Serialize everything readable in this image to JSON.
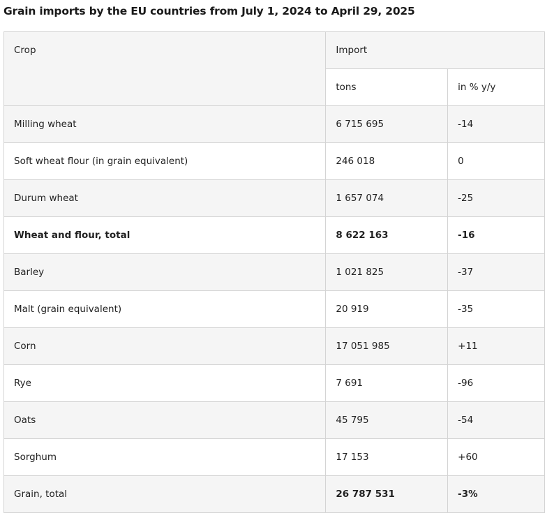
{
  "title": "Grain imports by the EU countries from July 1, 2024 to April 29, 2025",
  "header": {
    "crop": "Crop",
    "import": "Import",
    "tons": "tons",
    "pct": "in % y/y"
  },
  "rows": [
    {
      "crop": "Milling wheat",
      "tons": "6 715 695",
      "pct": "-14"
    },
    {
      "crop": "Soft wheat flour (in grain equivalent)",
      "tons": "246 018",
      "pct": "0"
    },
    {
      "crop": "Durum wheat",
      "tons": "1 657 074",
      "pct": "-25"
    },
    {
      "crop": "Wheat and flour, total",
      "tons": "8 622 163",
      "pct": "-16"
    },
    {
      "crop": "Barley",
      "tons": "1 021 825",
      "pct": "-37"
    },
    {
      "crop": "Malt (grain equivalent)",
      "tons": "20 919",
      "pct": "-35"
    },
    {
      "crop": "Corn",
      "tons": "17 051 985",
      "pct": "+11"
    },
    {
      "crop": "Rye",
      "tons": "7 691",
      "pct": "-96"
    },
    {
      "crop": "Oats",
      "tons": "45 795",
      "pct": "-54"
    },
    {
      "crop": "Sorghum",
      "tons": "17 153",
      "pct": "+60"
    },
    {
      "crop": "Grain, total",
      "tons": "26 787 531",
      "pct": "-3%"
    }
  ]
}
